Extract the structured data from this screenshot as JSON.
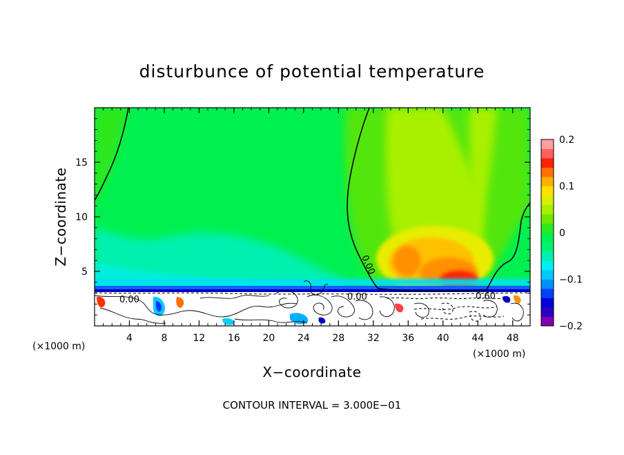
{
  "chart_data": {
    "type": "heatmap",
    "title": "disturbunce of potential temperature",
    "xlabel": "X−coordinate",
    "ylabel": "Z−coordinate",
    "x_unit": "(×1000 m)",
    "y_unit": "(×1000 m)",
    "xlim": [
      0,
      50
    ],
    "ylim": [
      0,
      20
    ],
    "x_ticks": [
      4,
      8,
      12,
      16,
      20,
      24,
      28,
      32,
      36,
      40,
      44,
      48
    ],
    "x_tick_labels": [
      "4",
      "8",
      "12",
      "16",
      "20",
      "24",
      "28",
      "32",
      "36",
      "40",
      "44",
      "48"
    ],
    "y_ticks": [
      5,
      10,
      15
    ],
    "y_tick_labels": [
      "5",
      "10",
      "15"
    ],
    "colorbar": {
      "range": [
        -0.2,
        0.2
      ],
      "ticks": [
        0.2,
        0.1,
        0,
        -0.1,
        -0.2
      ],
      "tick_labels": [
        "0.2",
        "0.1",
        "0",
        "−0.1",
        "−0.2"
      ],
      "levels": 20
    },
    "contour_labels": [
      "0.00",
      "0.00",
      "0.00",
      "0.60"
    ],
    "footer": "CONTOUR INTERVAL = 3.000E−01"
  }
}
